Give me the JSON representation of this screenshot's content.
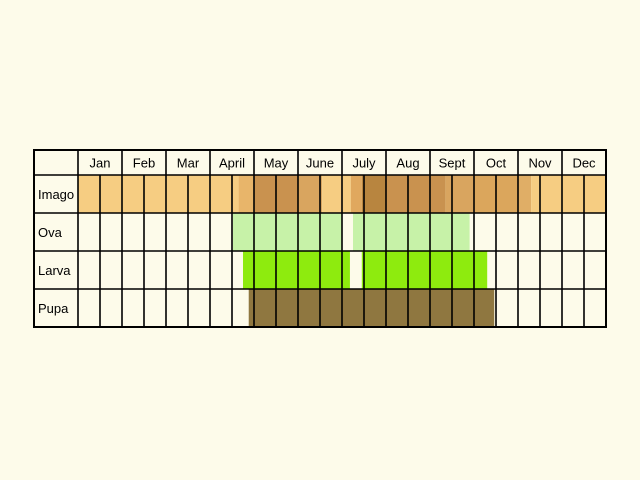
{
  "chart_data": {
    "type": "table",
    "months": [
      "Jan",
      "Feb",
      "Mar",
      "April",
      "May",
      "June",
      "July",
      "Aug",
      "Sept",
      "Oct",
      "Nov",
      "Dec"
    ],
    "subdivisions_per_month": 2,
    "stages": [
      {
        "key": "imago",
        "label": "Imago",
        "segments": [
          {
            "start_month": 0.0,
            "end_month": 3.65,
            "color": "#f6cd82"
          },
          {
            "start_month": 3.65,
            "end_month": 4.0,
            "color": "#e8b56a"
          },
          {
            "start_month": 4.0,
            "end_month": 5.0,
            "color": "#c9924f"
          },
          {
            "start_month": 5.0,
            "end_month": 5.55,
            "color": "#d9a55f"
          },
          {
            "start_month": 5.55,
            "end_month": 6.2,
            "color": "#f6cd82"
          },
          {
            "start_month": 6.2,
            "end_month": 6.45,
            "color": "#e0a85e"
          },
          {
            "start_month": 6.45,
            "end_month": 7.0,
            "color": "#b8853f"
          },
          {
            "start_month": 7.0,
            "end_month": 8.0,
            "color": "#c9924f"
          },
          {
            "start_month": 8.0,
            "end_month": 8.35,
            "color": "#c9924f"
          },
          {
            "start_month": 8.35,
            "end_month": 9.0,
            "color": "#d9a55f"
          },
          {
            "start_month": 9.0,
            "end_month": 10.0,
            "color": "#dba65c"
          },
          {
            "start_month": 10.0,
            "end_month": 10.3,
            "color": "#e0ae66"
          },
          {
            "start_month": 10.3,
            "end_month": 12.0,
            "color": "#f6cd82"
          }
        ]
      },
      {
        "key": "ova",
        "label": "Ova",
        "segments": [
          {
            "start_month": 3.52,
            "end_month": 6.0,
            "color": "#c7f2a8"
          },
          {
            "start_month": 6.25,
            "end_month": 8.9,
            "color": "#c7f2a8"
          }
        ]
      },
      {
        "key": "larva",
        "label": "Larva",
        "segments": [
          {
            "start_month": 3.75,
            "end_month": 6.18,
            "color": "#8eeb0e"
          },
          {
            "start_month": 6.45,
            "end_month": 9.3,
            "color": "#8eeb0e"
          }
        ]
      },
      {
        "key": "pupa",
        "label": "Pupa",
        "segments": [
          {
            "start_month": 3.88,
            "end_month": 9.46,
            "color": "#8f7740"
          }
        ]
      }
    ]
  }
}
